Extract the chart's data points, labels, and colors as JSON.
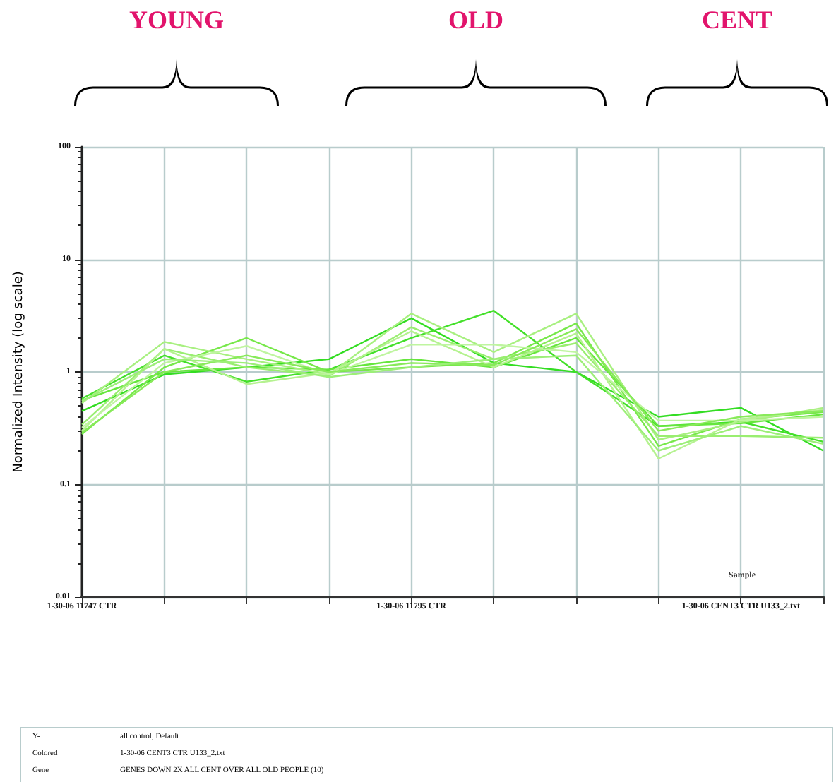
{
  "chart_data": {
    "type": "line",
    "ylabel": "Normalized Intensity (log scale)",
    "xlabel": "Sample",
    "categories": [
      "1-30-06 11747 CTR",
      null,
      null,
      null,
      "1-30-06 11795 CTR",
      null,
      null,
      null,
      "1-30-06 CENT3 CTR U133_2.txt",
      null
    ],
    "series": [
      {
        "color": "#33dd22",
        "values": [
          0.45,
          0.95,
          1.1,
          1.3,
          3.0,
          1.2,
          1.0,
          0.4,
          0.48,
          0.2
        ]
      },
      {
        "color": "#44e02a",
        "values": [
          0.58,
          1.4,
          0.82,
          1.05,
          2.0,
          3.5,
          1.0,
          0.33,
          0.36,
          0.24
        ]
      },
      {
        "color": "#66e63d",
        "values": [
          0.56,
          1.0,
          1.1,
          1.05,
          1.3,
          1.1,
          2.0,
          0.33,
          0.35,
          0.42
        ]
      },
      {
        "color": "#77e84a",
        "values": [
          0.28,
          1.1,
          2.0,
          1.0,
          1.1,
          1.2,
          2.7,
          0.22,
          0.38,
          0.44
        ]
      },
      {
        "color": "#a8f080",
        "values": [
          0.53,
          1.85,
          1.3,
          0.95,
          3.3,
          1.5,
          3.3,
          0.25,
          0.36,
          0.48
        ]
      },
      {
        "color": "#99ee70",
        "values": [
          0.34,
          1.6,
          1.1,
          0.92,
          2.5,
          1.3,
          1.8,
          0.27,
          0.27,
          0.26
        ]
      },
      {
        "color": "#b5f290",
        "values": [
          0.3,
          1.6,
          0.78,
          0.98,
          2.3,
          1.1,
          2.2,
          0.17,
          0.38,
          0.46
        ]
      },
      {
        "color": "#bff5a0",
        "values": [
          0.32,
          1.2,
          1.7,
          0.95,
          1.75,
          1.75,
          1.5,
          0.37,
          0.37,
          0.4
        ]
      },
      {
        "color": "#88ea5a",
        "values": [
          0.29,
          1.0,
          1.4,
          1.0,
          1.2,
          1.15,
          2.4,
          0.3,
          0.4,
          0.45
        ]
      },
      {
        "color": "#9cef78",
        "values": [
          0.55,
          1.3,
          1.2,
          0.9,
          1.1,
          1.3,
          1.4,
          0.2,
          0.33,
          0.23
        ]
      }
    ],
    "ylim": [
      0.01,
      100
    ],
    "yticks": [
      0.01,
      0.1,
      1,
      10,
      100
    ],
    "log": true,
    "grid": true,
    "marker": "none",
    "annotations": [
      "YOUNG",
      "OLD",
      "CENT",
      "Y-",
      "all control, Default",
      "Colored",
      "1-30-06 CENT3 CTR U133_2.txt",
      "Gene",
      "GENES DOWN 2X ALL CENT OVER ALL OLD PEOPLE (10)"
    ]
  }
}
